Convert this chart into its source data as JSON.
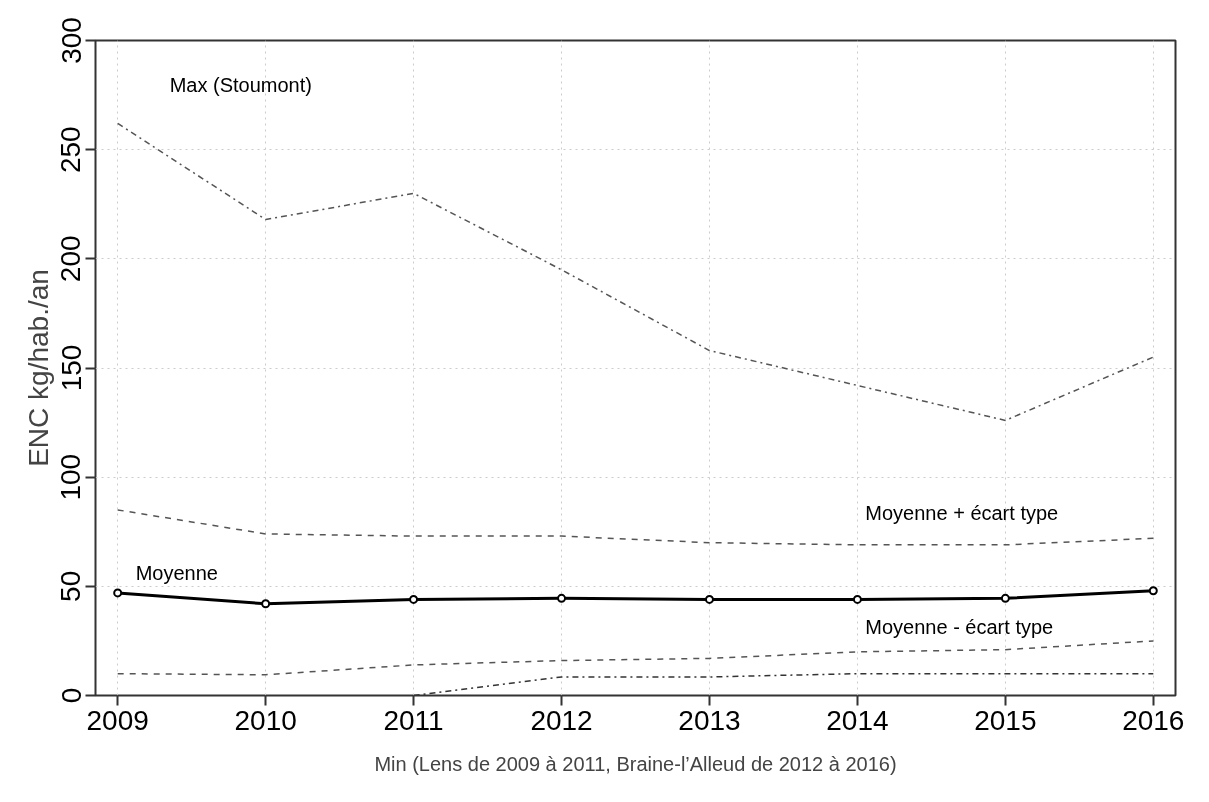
{
  "chart_data": {
    "type": "line",
    "ylabel": "ENC kg/hab./an",
    "xlabel": "Min (Lens de 2009 à 2011, Braine-l’Alleud de 2012 à 2016)",
    "x": [
      2009,
      2010,
      2011,
      2012,
      2013,
      2014,
      2015,
      2016
    ],
    "series": [
      {
        "name": "Max (Stoumont)",
        "color": "#555555",
        "line_style": "dashdot",
        "marker": "none",
        "values": [
          262,
          218,
          230,
          195,
          158,
          142,
          126,
          155
        ]
      },
      {
        "name": "Moyenne + écart type",
        "color": "#555555",
        "line_style": "dashed",
        "marker": "none",
        "values": [
          85,
          74,
          73,
          73,
          70,
          69,
          69,
          72
        ]
      },
      {
        "name": "Moyenne",
        "color": "#000000",
        "line_style": "solid",
        "marker": "circle",
        "values": [
          47,
          42,
          44,
          44.5,
          44,
          44,
          44.5,
          48
        ]
      },
      {
        "name": "Moyenne - écart type",
        "color": "#555555",
        "line_style": "dashed",
        "marker": "none",
        "values": [
          10,
          9.5,
          14,
          16,
          17,
          20,
          21,
          25
        ]
      },
      {
        "color": "#333333",
        "line_style": "dashdot",
        "marker": "none",
        "values": [
          null,
          null,
          0,
          8.5,
          8.5,
          10,
          10,
          10
        ]
      }
    ],
    "xlim": [
      2008.85,
      2016.15
    ],
    "ylim": [
      0,
      300
    ],
    "xticks": [
      2009,
      2010,
      2011,
      2012,
      2013,
      2014,
      2015,
      2016
    ],
    "yticks": [
      0,
      50,
      100,
      150,
      200,
      250,
      300
    ],
    "grid": true
  }
}
